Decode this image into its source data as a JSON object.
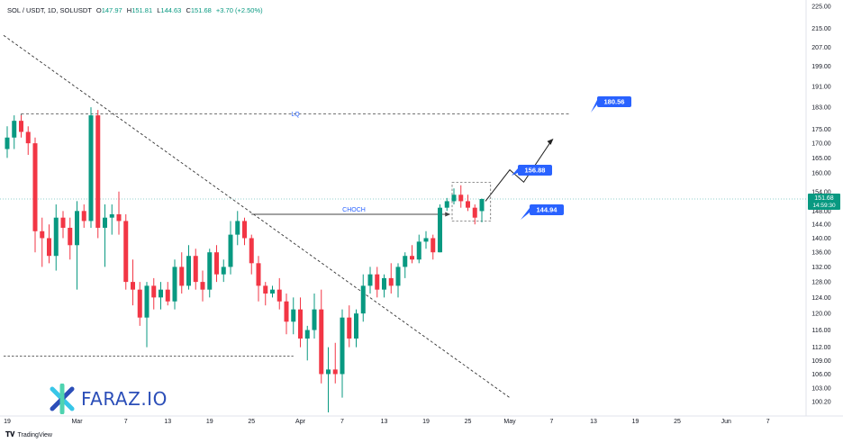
{
  "header": {
    "symbol": "SOL / USDT, 1D, SOLUSDT",
    "open_label": "O",
    "open": "147.97",
    "high_label": "H",
    "high": "151.81",
    "low_label": "L",
    "low": "144.63",
    "close_label": "C",
    "close": "151.68",
    "change": "+3.70 (+2.50%)"
  },
  "watermark": {
    "text": "FARAZ.IO"
  },
  "footer": {
    "brand": "TradingView"
  },
  "chart_data": {
    "type": "candlestick",
    "y_axis_ticks": [
      "225.00",
      "215.00",
      "207.00",
      "199.00",
      "191.00",
      "183.00",
      "175.00",
      "170.00",
      "165.00",
      "160.00",
      "154.00",
      "148.00",
      "144.00",
      "140.00",
      "136.00",
      "132.00",
      "128.00",
      "124.00",
      "120.00",
      "116.00",
      "112.00",
      "109.00",
      "106.00",
      "103.00",
      "100.20"
    ],
    "y_scale": "log",
    "x_axis_labels": [
      "19",
      "Mar",
      "7",
      "13",
      "19",
      "25",
      "Apr",
      "7",
      "13",
      "19",
      "25",
      "May",
      "7",
      "13",
      "19",
      "25",
      "Jun",
      "7"
    ],
    "x_axis_label_days": [
      0,
      10,
      17,
      23,
      29,
      35,
      42,
      48,
      54,
      60,
      66,
      72,
      78,
      84,
      90,
      96,
      103,
      109
    ],
    "last_price": "151.68",
    "countdown": "14:59:30",
    "candles": [
      {
        "o": 168,
        "h": 176,
        "l": 165,
        "c": 172
      },
      {
        "o": 172,
        "h": 180,
        "l": 168,
        "c": 178
      },
      {
        "o": 178,
        "h": 180,
        "l": 172,
        "c": 174
      },
      {
        "o": 174,
        "h": 176,
        "l": 166,
        "c": 170
      },
      {
        "o": 170,
        "h": 172,
        "l": 136,
        "c": 142
      },
      {
        "o": 142,
        "h": 146,
        "l": 132,
        "c": 140
      },
      {
        "o": 140,
        "h": 144,
        "l": 133,
        "c": 135
      },
      {
        "o": 135,
        "h": 150,
        "l": 131,
        "c": 146
      },
      {
        "o": 146,
        "h": 148,
        "l": 140,
        "c": 143
      },
      {
        "o": 143,
        "h": 146,
        "l": 134,
        "c": 138
      },
      {
        "o": 138,
        "h": 151,
        "l": 126,
        "c": 148
      },
      {
        "o": 148,
        "h": 150,
        "l": 143,
        "c": 145
      },
      {
        "o": 145,
        "h": 183,
        "l": 143,
        "c": 180
      },
      {
        "o": 180,
        "h": 182,
        "l": 140,
        "c": 143
      },
      {
        "o": 143,
        "h": 150,
        "l": 132,
        "c": 146
      },
      {
        "o": 146,
        "h": 150,
        "l": 141,
        "c": 147
      },
      {
        "o": 147,
        "h": 154,
        "l": 141,
        "c": 145
      },
      {
        "o": 145,
        "h": 147,
        "l": 126,
        "c": 128
      },
      {
        "o": 128,
        "h": 134,
        "l": 122,
        "c": 126
      },
      {
        "o": 126,
        "h": 128,
        "l": 117,
        "c": 119
      },
      {
        "o": 119,
        "h": 128,
        "l": 112,
        "c": 127
      },
      {
        "o": 127,
        "h": 129,
        "l": 121,
        "c": 124
      },
      {
        "o": 124,
        "h": 128,
        "l": 121,
        "c": 126
      },
      {
        "o": 126,
        "h": 128,
        "l": 122,
        "c": 123
      },
      {
        "o": 123,
        "h": 134,
        "l": 121,
        "c": 132
      },
      {
        "o": 132,
        "h": 136,
        "l": 125,
        "c": 127
      },
      {
        "o": 127,
        "h": 138,
        "l": 126,
        "c": 135
      },
      {
        "o": 135,
        "h": 137,
        "l": 126,
        "c": 128
      },
      {
        "o": 128,
        "h": 131,
        "l": 123,
        "c": 126
      },
      {
        "o": 126,
        "h": 137,
        "l": 124,
        "c": 136
      },
      {
        "o": 136,
        "h": 138,
        "l": 128,
        "c": 130
      },
      {
        "o": 130,
        "h": 134,
        "l": 128,
        "c": 132
      },
      {
        "o": 132,
        "h": 145,
        "l": 130,
        "c": 141
      },
      {
        "o": 141,
        "h": 148,
        "l": 138,
        "c": 145
      },
      {
        "o": 145,
        "h": 146,
        "l": 138,
        "c": 140
      },
      {
        "o": 140,
        "h": 141,
        "l": 130,
        "c": 133
      },
      {
        "o": 133,
        "h": 135,
        "l": 123,
        "c": 127
      },
      {
        "o": 127,
        "h": 128,
        "l": 122,
        "c": 125
      },
      {
        "o": 125,
        "h": 127,
        "l": 124,
        "c": 126
      },
      {
        "o": 126,
        "h": 129,
        "l": 121,
        "c": 123
      },
      {
        "o": 123,
        "h": 125,
        "l": 115,
        "c": 118
      },
      {
        "o": 118,
        "h": 124,
        "l": 115,
        "c": 121
      },
      {
        "o": 121,
        "h": 124,
        "l": 112,
        "c": 114
      },
      {
        "o": 114,
        "h": 117,
        "l": 109,
        "c": 116
      },
      {
        "o": 116,
        "h": 125,
        "l": 114,
        "c": 121
      },
      {
        "o": 121,
        "h": 126,
        "l": 104,
        "c": 106
      },
      {
        "o": 106,
        "h": 112,
        "l": 98,
        "c": 107
      },
      {
        "o": 107,
        "h": 113,
        "l": 104,
        "c": 106
      },
      {
        "o": 106,
        "h": 121,
        "l": 101,
        "c": 119
      },
      {
        "o": 119,
        "h": 122,
        "l": 112,
        "c": 114
      },
      {
        "o": 114,
        "h": 121,
        "l": 112,
        "c": 120
      },
      {
        "o": 120,
        "h": 130,
        "l": 118,
        "c": 127
      },
      {
        "o": 127,
        "h": 132,
        "l": 125,
        "c": 130
      },
      {
        "o": 130,
        "h": 132,
        "l": 124,
        "c": 126
      },
      {
        "o": 126,
        "h": 130,
        "l": 124,
        "c": 129
      },
      {
        "o": 129,
        "h": 133,
        "l": 125,
        "c": 127
      },
      {
        "o": 127,
        "h": 133,
        "l": 124,
        "c": 132
      },
      {
        "o": 132,
        "h": 136,
        "l": 129,
        "c": 135
      },
      {
        "o": 135,
        "h": 138,
        "l": 133,
        "c": 134
      },
      {
        "o": 134,
        "h": 141,
        "l": 133,
        "c": 139
      },
      {
        "o": 139,
        "h": 142,
        "l": 137,
        "c": 140
      },
      {
        "o": 140,
        "h": 141,
        "l": 134,
        "c": 136
      },
      {
        "o": 136,
        "h": 150,
        "l": 136,
        "c": 149
      },
      {
        "o": 149,
        "h": 152,
        "l": 148,
        "c": 151
      },
      {
        "o": 151,
        "h": 155,
        "l": 150,
        "c": 153
      },
      {
        "o": 153,
        "h": 156,
        "l": 149,
        "c": 151
      },
      {
        "o": 151,
        "h": 153,
        "l": 148,
        "c": 149
      },
      {
        "o": 149,
        "h": 150,
        "l": 144,
        "c": 146
      },
      {
        "o": 147.97,
        "h": 151.81,
        "l": 144.63,
        "c": 151.68
      }
    ],
    "annotations": [
      {
        "label": "LQ",
        "price": 180.56,
        "style": "dashed"
      },
      {
        "label": "CHOCH",
        "price": 147,
        "style": "solid-arrow"
      },
      {
        "label": "180.56",
        "kind": "price-callout"
      },
      {
        "label": "156.88",
        "kind": "price-callout"
      },
      {
        "label": "144.94",
        "kind": "price-callout"
      }
    ]
  }
}
